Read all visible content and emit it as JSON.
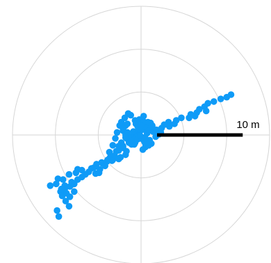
{
  "chart_data": {
    "type": "scatter",
    "title": "",
    "xlabel": "",
    "ylabel": "",
    "projection": "polar-top-down",
    "units": "m",
    "rings_m": [
      5,
      10,
      15
    ],
    "radial_max_m": 15,
    "grid": true,
    "marker_color": "#0f9bf7",
    "scale_bar": {
      "label": "10 m",
      "length_m": 10,
      "color": "#000000"
    },
    "points": {
      "x": [
        10.5,
        10,
        9.3,
        8.5,
        7.8,
        7.4,
        6.8,
        7.6,
        6.5,
        5.8,
        6.3,
        5.6,
        4.7,
        4.1,
        3.2,
        3.9,
        3.3,
        2.7,
        2.4,
        1.8,
        2.3,
        2.1,
        1.7,
        1.4,
        1.1,
        0.7,
        0.4,
        0.8,
        1.2,
        0.5,
        0.2,
        -0.2,
        0.1,
        -0.4,
        -0.5,
        -0.2,
        0.5,
        0.9,
        0.4,
        0.2,
        -0.7,
        -1,
        -1.3,
        -1.8,
        -2.1,
        -2.5,
        -2.3,
        -1.9,
        -1.5,
        -1.2,
        -0.7,
        -0.6,
        -0.2,
        0.3,
        0.4,
        -1.7,
        -2.3,
        -2.6,
        -3,
        -2.8,
        -2.1,
        -2.6,
        -3.3,
        -3.7,
        -3.6,
        -3.3,
        -3.1,
        -2.9,
        -2.5,
        -2.4,
        -1.8,
        -1.7,
        -2.1,
        -2.6,
        -3.4,
        -3.9,
        -4.6,
        -5.2,
        -5.8,
        -6.1,
        -6.5,
        -5.3,
        -5.5,
        -4.8,
        -4.5,
        -4.2,
        -4,
        -4.9,
        -6.9,
        -7.4,
        -7.8,
        -8.3,
        -8.9,
        -9.4,
        -9.2,
        -8.7,
        -8.3,
        -7.8,
        -8.9,
        -8.1,
        -7.6,
        -8.4,
        -9.1,
        -9.7,
        -9.9,
        -9.3,
        -8.8,
        -8.4,
        -10.6,
        -9.6,
        -9.8,
        -7.4,
        -6.9,
        -0.8,
        -1.2,
        -0.9,
        -0.3,
        -0.6,
        -0.8,
        -1.1,
        -1.4,
        -1.3,
        -1.5,
        -1.6,
        -1.8,
        0.7,
        -0.9,
        -2.1,
        -1.8,
        -1.6,
        -0.3,
        0.6,
        0.9,
        1.3,
        1.1,
        0.8,
        0.3,
        0,
        1.3,
        1,
        -0.4,
        -0.1,
        0.5
      ],
      "y": [
        4.7,
        4.4,
        4.2,
        3.9,
        3.7,
        3.3,
        3,
        2.8,
        2.6,
        2.4,
        2.2,
        2,
        2,
        1.7,
        1.5,
        1.3,
        1,
        1.2,
        0.8,
        0.6,
        0.3,
        0.1,
        -0.2,
        0.4,
        0.7,
        0.2,
        -0.3,
        -0.7,
        -1,
        -1,
        -0.5,
        0.1,
        0.6,
        1,
        0.3,
        -0.2,
        -1.4,
        -1.2,
        -0.8,
        -1.7,
        -0.9,
        -0.4,
        -0.2,
        0,
        0.5,
        1.1,
        1.5,
        2,
        2.5,
        2.3,
        1.7,
        1.3,
        1.8,
        2.2,
        1.5,
        -0.4,
        -0.9,
        -1.3,
        -0.4,
        0.3,
        -1.3,
        -1.8,
        -1.2,
        -2,
        -2.6,
        -2.9,
        -2.4,
        -1.9,
        -1.6,
        -2.6,
        -2.3,
        -1.9,
        -1.5,
        -2.8,
        -3,
        -2.9,
        -3.2,
        -3.4,
        -3.9,
        -4.3,
        -4.6,
        -4.5,
        -3.8,
        -4,
        -3.3,
        -3.6,
        -3.1,
        -4.4,
        -4.9,
        -5.2,
        -5.7,
        -6,
        -6.3,
        -6.6,
        -7.1,
        -6.8,
        -7.2,
        -6.6,
        -5.9,
        -5.5,
        -4.4,
        -4.6,
        -5.2,
        -5.1,
        -5.7,
        -6.3,
        -7.7,
        -8.3,
        -5.9,
        -9.5,
        -8.8,
        -4,
        -4.1,
        0.1,
        -0.2,
        -0.6,
        -0.1,
        -0.5,
        -1.1,
        -1.1,
        -0.9,
        -0.6,
        -0.1,
        0.3,
        -0.3,
        0.7,
        0.4,
        0.7,
        1.1,
        1.3,
        0.7,
        0.9,
        0.5,
        1,
        1.4,
        1.5,
        1.5,
        1.1,
        1.1,
        -0.6,
        -0.5,
        -0.1,
        -0.4
      ]
    }
  }
}
